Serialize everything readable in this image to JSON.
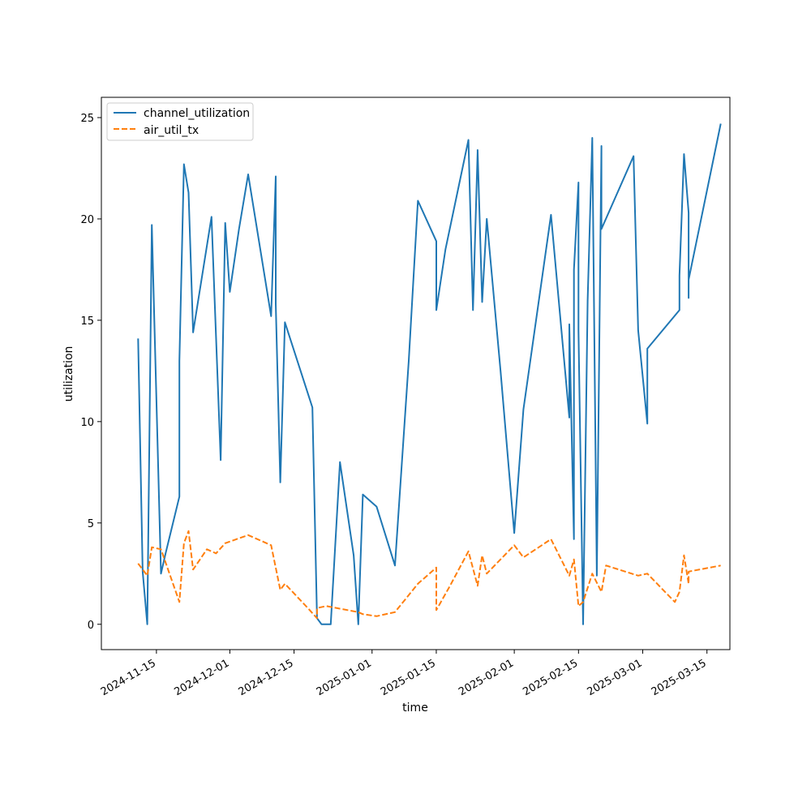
{
  "chart_data": {
    "type": "line",
    "title": "",
    "xlabel": "time",
    "ylabel": "utilization",
    "x_type": "date",
    "xlim": [
      "2024-11-03",
      "2025-03-20"
    ],
    "ylim": [
      -1.25,
      26.0
    ],
    "x_ticks": [
      "2024-11-15",
      "2024-12-01",
      "2024-12-15",
      "2025-01-01",
      "2025-01-15",
      "2025-02-01",
      "2025-02-15",
      "2025-03-01",
      "2025-03-15"
    ],
    "y_ticks": [
      0,
      5,
      10,
      15,
      20,
      25
    ],
    "grid": false,
    "legend": "top-left",
    "series": [
      {
        "name": "channel_utilization",
        "color": "#1f77b4",
        "dash": "solid",
        "points": [
          [
            "2024-11-11",
            14.1
          ],
          [
            "2024-11-12",
            2.6
          ],
          [
            "2024-11-13",
            0.0
          ],
          [
            "2024-11-14",
            19.7
          ],
          [
            "2024-11-16",
            2.5
          ],
          [
            "2024-11-17",
            3.5
          ],
          [
            "2024-11-20",
            6.3
          ],
          [
            "2024-11-20",
            13.0
          ],
          [
            "2024-11-21",
            22.7
          ],
          [
            "2024-11-22",
            21.3
          ],
          [
            "2024-11-23",
            14.4
          ],
          [
            "2024-11-27",
            20.1
          ],
          [
            "2024-11-29",
            8.1
          ],
          [
            "2024-11-30",
            19.8
          ],
          [
            "2024-12-01",
            16.4
          ],
          [
            "2024-12-03",
            19.5
          ],
          [
            "2024-12-05",
            22.2
          ],
          [
            "2024-12-10",
            15.2
          ],
          [
            "2024-12-11",
            22.1
          ],
          [
            "2024-12-11",
            15.8
          ],
          [
            "2024-12-12",
            7.0
          ],
          [
            "2024-12-13",
            14.9
          ],
          [
            "2024-12-19",
            10.7
          ],
          [
            "2024-12-20",
            0.3
          ],
          [
            "2024-12-21",
            0.0
          ],
          [
            "2024-12-23",
            0.0
          ],
          [
            "2024-12-25",
            8.0
          ],
          [
            "2024-12-28",
            3.4
          ],
          [
            "2024-12-29",
            0.0
          ],
          [
            "2024-12-30",
            6.4
          ],
          [
            "2025-01-02",
            5.8
          ],
          [
            "2025-01-06",
            2.9
          ],
          [
            "2025-01-09",
            13.0
          ],
          [
            "2025-01-11",
            20.9
          ],
          [
            "2025-01-15",
            18.9
          ],
          [
            "2025-01-15",
            15.5
          ],
          [
            "2025-01-17",
            18.5
          ],
          [
            "2025-01-22",
            23.9
          ],
          [
            "2025-01-23",
            15.5
          ],
          [
            "2025-01-24",
            23.3
          ],
          [
            "2025-01-24",
            23.4
          ],
          [
            "2025-01-25",
            15.9
          ],
          [
            "2025-01-26",
            20.0
          ],
          [
            "2025-01-29",
            12.5
          ],
          [
            "2025-02-01",
            4.5
          ],
          [
            "2025-02-03",
            10.6
          ],
          [
            "2025-02-09",
            20.2
          ],
          [
            "2025-02-13",
            10.2
          ],
          [
            "2025-02-13",
            14.8
          ],
          [
            "2025-02-14",
            4.2
          ],
          [
            "2025-02-14",
            17.5
          ],
          [
            "2025-02-15",
            21.8
          ],
          [
            "2025-02-15",
            14.5
          ],
          [
            "2025-02-16",
            0.0
          ],
          [
            "2025-02-17",
            16.0
          ],
          [
            "2025-02-18",
            24.0
          ],
          [
            "2025-02-19",
            2.4
          ],
          [
            "2025-02-20",
            23.6
          ],
          [
            "2025-02-20",
            19.5
          ],
          [
            "2025-02-27",
            23.1
          ],
          [
            "2025-02-28",
            14.5
          ],
          [
            "2025-03-02",
            9.9
          ],
          [
            "2025-03-02",
            13.6
          ],
          [
            "2025-03-09",
            15.5
          ],
          [
            "2025-03-09",
            17.2
          ],
          [
            "2025-03-10",
            23.2
          ],
          [
            "2025-03-11",
            20.3
          ],
          [
            "2025-03-11",
            16.1
          ],
          [
            "2025-03-11",
            17.0
          ],
          [
            "2025-03-18",
            24.7
          ]
        ]
      },
      {
        "name": "air_util_tx",
        "color": "#ff7f0e",
        "dash": "dashed",
        "points": [
          [
            "2024-11-11",
            3.0
          ],
          [
            "2024-11-13",
            2.4
          ],
          [
            "2024-11-14",
            3.8
          ],
          [
            "2024-11-16",
            3.7
          ],
          [
            "2024-11-20",
            1.1
          ],
          [
            "2024-11-21",
            4.0
          ],
          [
            "2024-11-22",
            4.6
          ],
          [
            "2024-11-23",
            2.7
          ],
          [
            "2024-11-26",
            3.7
          ],
          [
            "2024-11-28",
            3.5
          ],
          [
            "2024-11-30",
            4.0
          ],
          [
            "2024-12-05",
            4.4
          ],
          [
            "2024-12-10",
            3.9
          ],
          [
            "2024-12-12",
            1.7
          ],
          [
            "2024-12-13",
            2.0
          ],
          [
            "2024-12-18",
            0.8
          ],
          [
            "2024-12-20",
            0.3
          ],
          [
            "2024-12-20",
            0.8
          ],
          [
            "2024-12-22",
            0.9
          ],
          [
            "2024-12-29",
            0.6
          ],
          [
            "2024-12-30",
            0.5
          ],
          [
            "2025-01-02",
            0.4
          ],
          [
            "2025-01-06",
            0.6
          ],
          [
            "2025-01-11",
            2.0
          ],
          [
            "2025-01-15",
            2.8
          ],
          [
            "2025-01-15",
            0.7
          ],
          [
            "2025-01-18",
            1.9
          ],
          [
            "2025-01-22",
            3.6
          ],
          [
            "2025-01-24",
            1.9
          ],
          [
            "2025-01-25",
            3.4
          ],
          [
            "2025-01-26",
            2.5
          ],
          [
            "2025-02-01",
            3.9
          ],
          [
            "2025-02-03",
            3.3
          ],
          [
            "2025-02-09",
            4.2
          ],
          [
            "2025-02-13",
            2.4
          ],
          [
            "2025-02-14",
            3.2
          ],
          [
            "2025-02-15",
            0.9
          ],
          [
            "2025-02-16",
            1.1
          ],
          [
            "2025-02-18",
            2.5
          ],
          [
            "2025-02-20",
            1.6
          ],
          [
            "2025-02-21",
            2.9
          ],
          [
            "2025-02-28",
            2.4
          ],
          [
            "2025-03-02",
            2.5
          ],
          [
            "2025-03-08",
            1.1
          ],
          [
            "2025-03-09",
            1.6
          ],
          [
            "2025-03-10",
            3.4
          ],
          [
            "2025-03-11",
            2.0
          ],
          [
            "2025-03-11",
            2.6
          ],
          [
            "2025-03-18",
            2.9
          ]
        ]
      }
    ]
  }
}
